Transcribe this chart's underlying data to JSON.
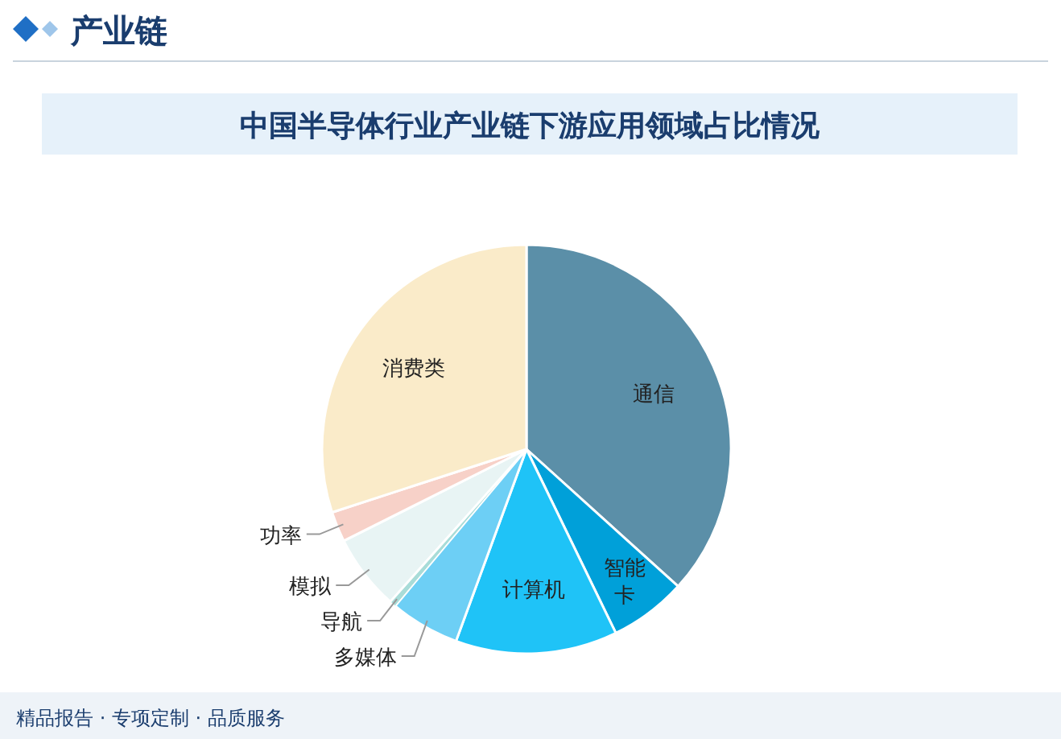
{
  "chart_data": {
    "type": "pie",
    "title": "中国半导体行业产业链下游应用领域占比情况",
    "categories": [
      "通信",
      "智能卡",
      "计算机",
      "多媒体",
      "导航",
      "模拟",
      "功率",
      "消费类"
    ],
    "values": [
      36.7,
      6.1,
      12.8,
      5.5,
      0.5,
      6.0,
      2.4,
      30.0
    ],
    "colors": [
      "#5b8fa8",
      "#00a0d9",
      "#1fc3f7",
      "#6dcff5",
      "#a8dcd8",
      "#e8f4f4",
      "#f7d1c8",
      "#faebc9"
    ],
    "annotations": [
      "产业链",
      "精品报告 · 专项定制 · 品质服务"
    ]
  }
}
